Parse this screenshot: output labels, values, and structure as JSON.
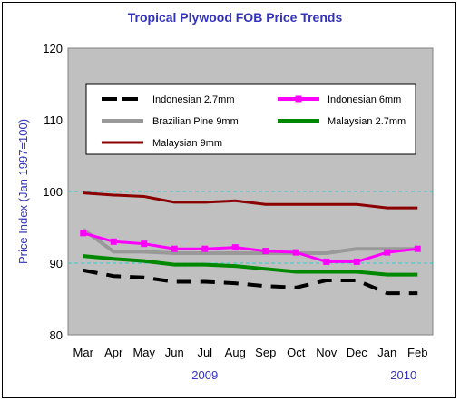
{
  "chart_data": {
    "type": "line",
    "title": "Tropical Plywood FOB Price Trends",
    "ylabel": "Price Index (Jan 1997=100)",
    "xlabel": "",
    "ylim": [
      80,
      120
    ],
    "yticks": [
      80,
      90,
      100,
      110,
      120
    ],
    "categories": [
      "Mar",
      "Apr",
      "May",
      "Jun",
      "Jul",
      "Aug",
      "Sep",
      "Oct",
      "Nov",
      "Dec",
      "Jan",
      "Feb"
    ],
    "year_labels": [
      {
        "label": "2009",
        "category": "Jul"
      },
      {
        "label": "2010",
        "category": "Jan"
      }
    ],
    "reference_lines": [
      90,
      100
    ],
    "legend_position": "top",
    "series": [
      {
        "name": "Indonesian 2.7mm",
        "color": "#000000",
        "dash": "dashed",
        "values": [
          89.0,
          88.2,
          88.0,
          87.4,
          87.4,
          87.2,
          86.8,
          86.6,
          87.6,
          87.6,
          85.8,
          85.8
        ]
      },
      {
        "name": "Indonesian 6mm",
        "color": "#ff00ff",
        "marker": "square",
        "values": [
          94.2,
          93.0,
          92.7,
          92.0,
          92.0,
          92.2,
          91.7,
          91.5,
          90.2,
          90.2,
          91.5,
          92.0
        ]
      },
      {
        "name": "Brazilian Pine 9mm",
        "color": "#999999",
        "values": [
          94.7,
          91.6,
          91.6,
          91.4,
          91.4,
          91.4,
          91.4,
          91.4,
          91.4,
          92.0,
          92.0,
          92.0
        ]
      },
      {
        "name": "Malaysian 2.7mm",
        "color": "#008800",
        "values": [
          91.0,
          90.6,
          90.3,
          89.8,
          89.8,
          89.6,
          89.2,
          88.8,
          88.8,
          88.8,
          88.4,
          88.4
        ]
      },
      {
        "name": "Malaysian 9mm",
        "color": "#8b0000",
        "values": [
          99.8,
          99.5,
          99.3,
          98.5,
          98.5,
          98.7,
          98.2,
          98.2,
          98.2,
          98.2,
          97.7,
          97.7
        ]
      }
    ]
  }
}
